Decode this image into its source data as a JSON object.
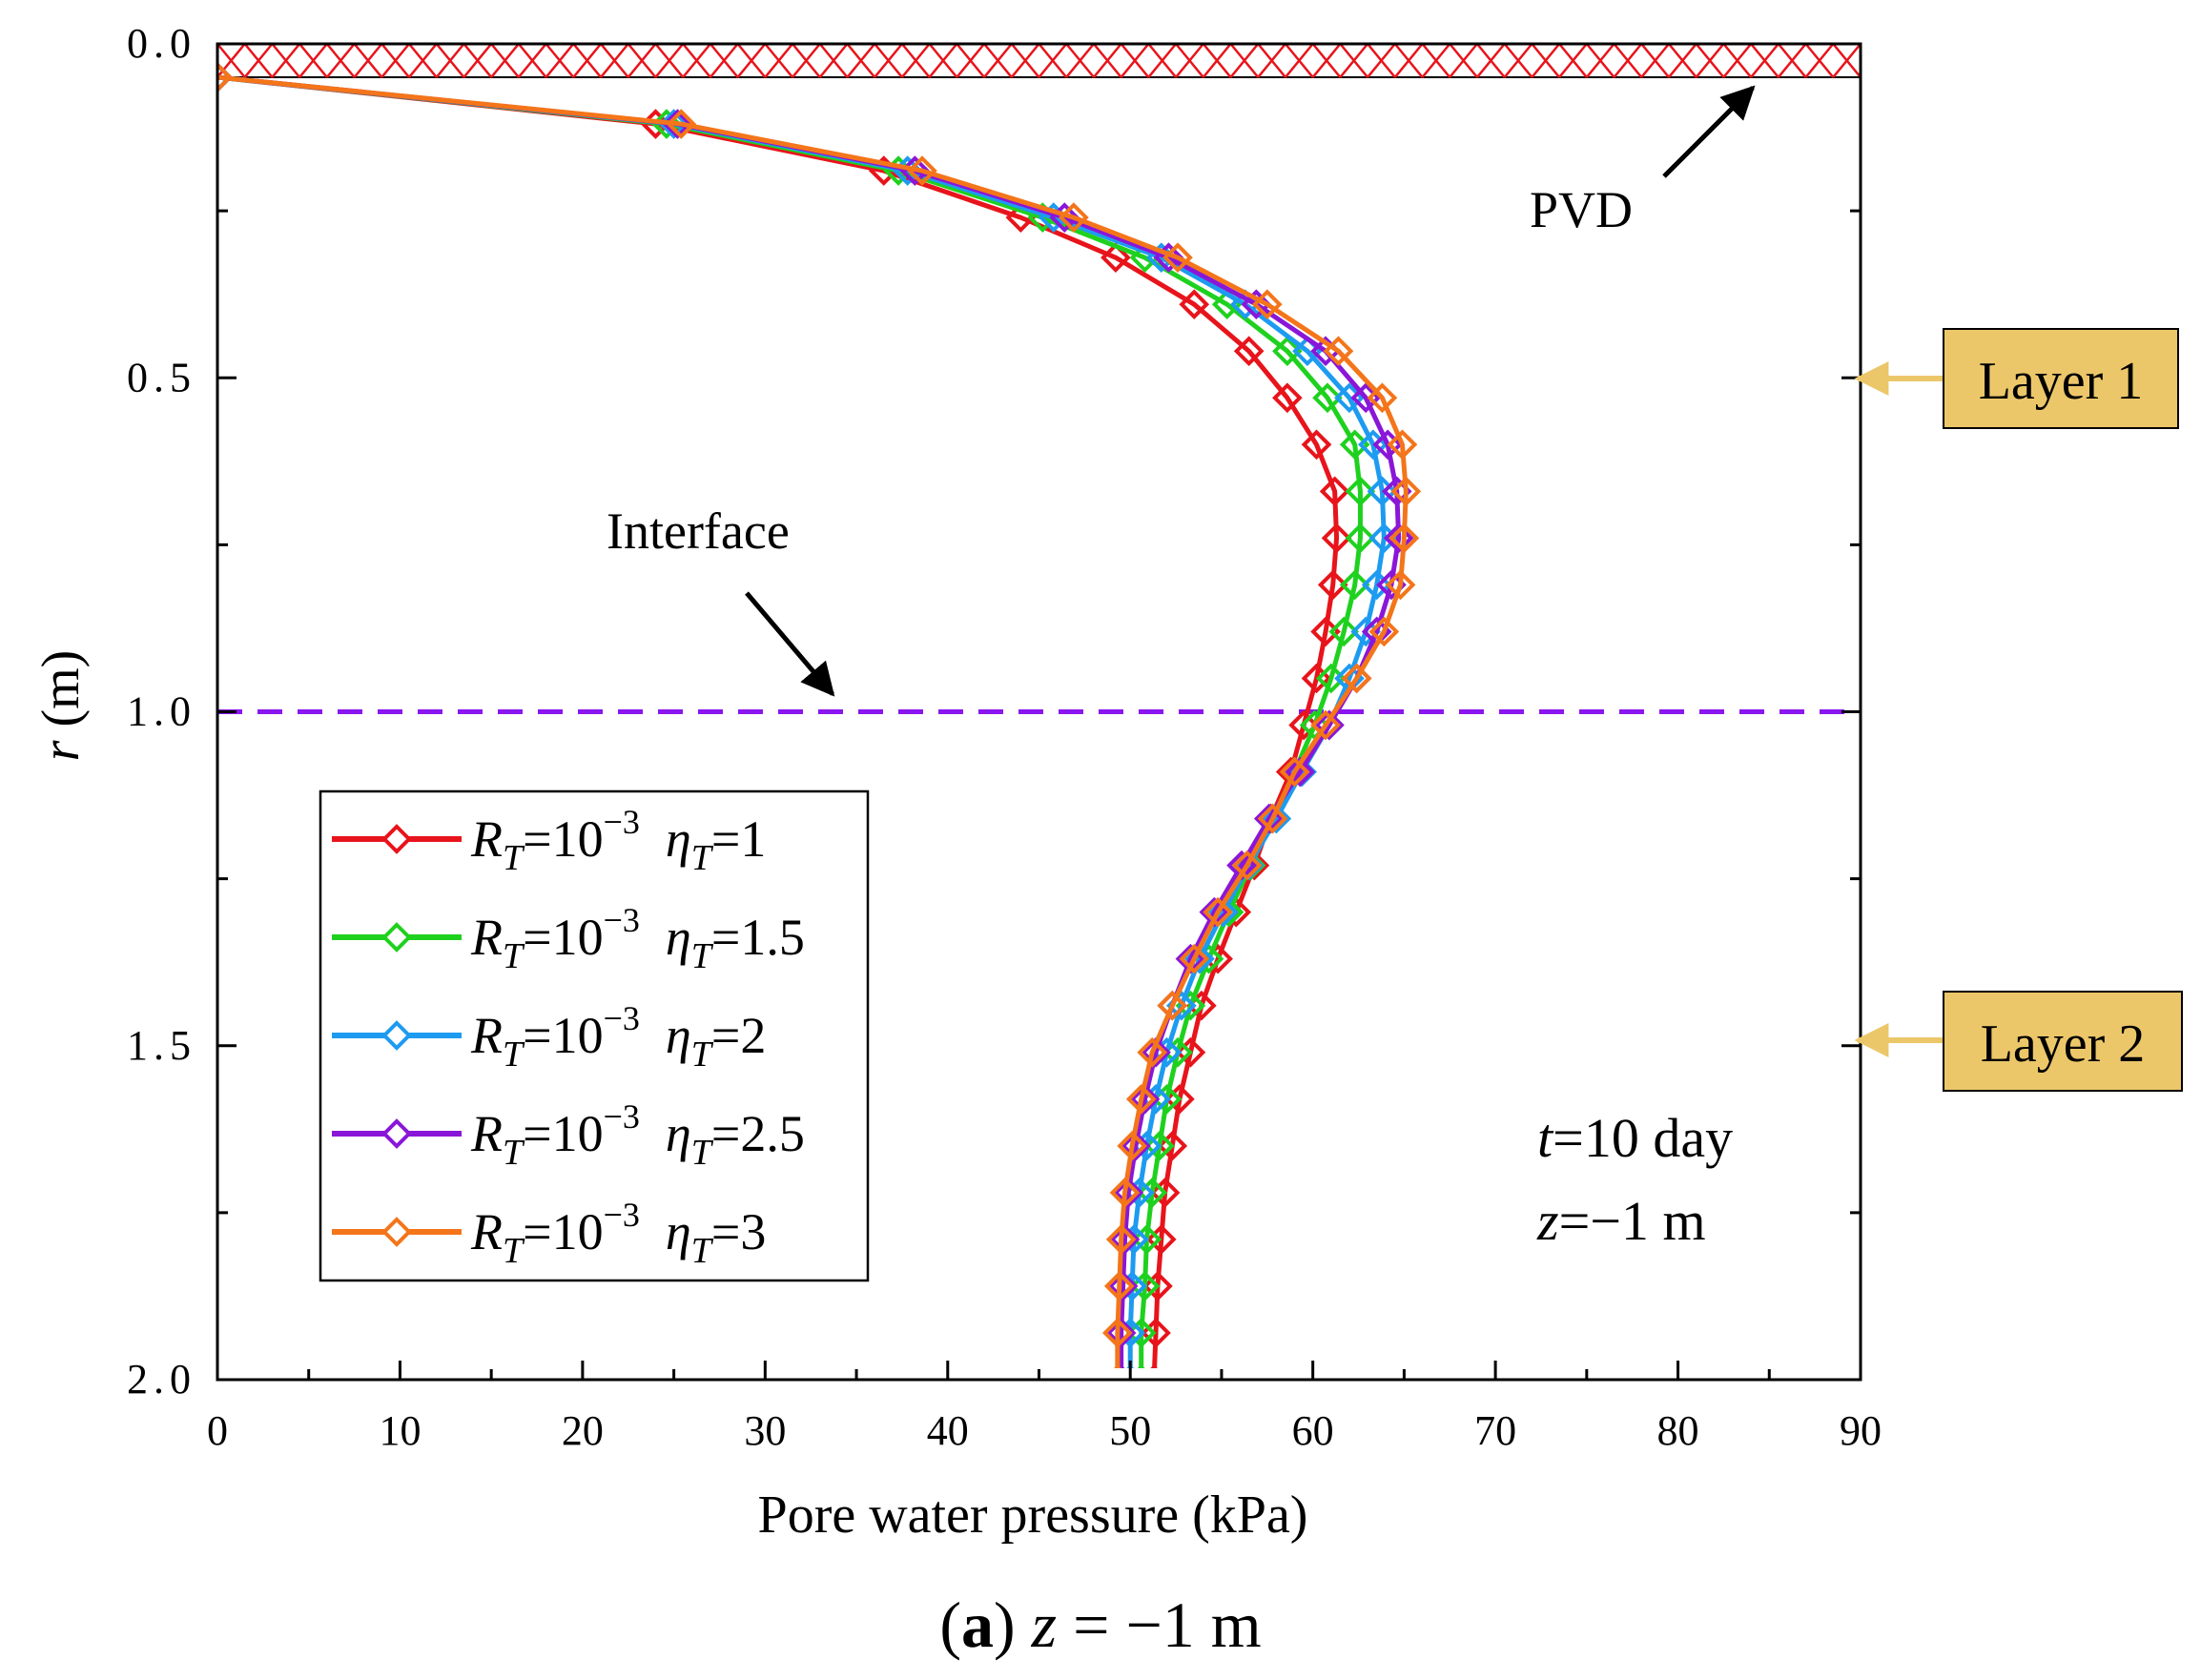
{
  "chart_data": {
    "type": "line",
    "xlabel": "Pore water pressure  (kPa)",
    "ylabel_italic": "r",
    "ylabel_unit": " (m)",
    "xlim": [
      0,
      90
    ],
    "ylim": [
      0,
      2.0
    ],
    "y_inverted": true,
    "x_major_ticks": [
      0,
      10,
      20,
      30,
      40,
      50,
      60,
      70,
      80,
      90
    ],
    "y_major_ticks": [
      0.0,
      0.5,
      1.0,
      1.5,
      2.0
    ],
    "y_tick_labels": [
      "0.0",
      "0.5",
      "1.0",
      "1.5",
      "2.0"
    ],
    "caption": {
      "bold": "a",
      "rest": " z = −1 m"
    },
    "annotations": {
      "pvd": "PVD",
      "interface": "Interface",
      "layer1": "Layer 1",
      "layer2": "Layer 2",
      "time": "t=10 day",
      "depth": "z=−1 m",
      "interface_r": 1.0,
      "pvd_band_r": [
        0.0,
        0.05
      ]
    },
    "colors": {
      "pvd_hatch": "#e8141b",
      "interface_line": "#8a16f0",
      "layer_box": "#ecc76a",
      "layer_arrow": "#ecc76a",
      "arrow": "#000000"
    },
    "r_points": [
      0.05,
      0.12,
      0.19,
      0.26,
      0.32,
      0.39,
      0.46,
      0.53,
      0.6,
      0.67,
      0.74,
      0.81,
      0.88,
      0.95,
      1.02,
      1.09,
      1.16,
      1.23,
      1.3,
      1.37,
      1.44,
      1.51,
      1.58,
      1.65,
      1.72,
      1.79,
      1.86,
      1.93,
      2.0
    ],
    "series": [
      {
        "name": "RT=10^-3 ηT=1",
        "legend": {
          "R": "R",
          "Rsub": "T",
          "eq1": "=10",
          "exp": "−3",
          "eta": "η",
          "etasub": "T",
          "eq2": "=1"
        },
        "color": "#e8141b",
        "values": [
          0,
          24.0,
          36.5,
          44.0,
          49.2,
          53.5,
          56.5,
          58.6,
          60.2,
          61.2,
          61.3,
          61.1,
          60.7,
          60.2,
          59.5,
          58.8,
          57.7,
          56.8,
          55.8,
          54.8,
          53.9,
          53.3,
          52.7,
          52.3,
          51.9,
          51.7,
          51.5,
          51.4,
          51.3
        ]
      },
      {
        "name": "RT=10^-3 ηT=1.5",
        "legend": {
          "R": "R",
          "Rsub": "T",
          "eq1": "=10",
          "exp": "−3",
          "eta": "η",
          "etasub": "T",
          "eq2": "=1.5"
        },
        "color": "#1fd11f",
        "values": [
          0,
          24.6,
          37.3,
          45.2,
          50.8,
          55.3,
          58.6,
          60.8,
          62.3,
          62.6,
          62.6,
          62.3,
          61.7,
          61.0,
          60.1,
          59.0,
          57.8,
          56.6,
          55.4,
          54.3,
          53.3,
          52.6,
          52.0,
          51.6,
          51.2,
          50.9,
          50.8,
          50.6,
          50.6
        ]
      },
      {
        "name": "RT=10^-3 ηT=2",
        "legend": {
          "R": "R",
          "Rsub": "T",
          "eq1": "=10",
          "exp": "−3",
          "eta": "η",
          "etasub": "T",
          "eq2": "=2"
        },
        "color": "#1d9bf0",
        "values": [
          0,
          25.0,
          37.8,
          45.8,
          51.7,
          56.3,
          59.7,
          62.0,
          63.3,
          63.8,
          63.9,
          63.5,
          62.9,
          62.0,
          60.9,
          59.4,
          58.0,
          56.5,
          55.1,
          53.8,
          52.8,
          52.0,
          51.4,
          50.9,
          50.5,
          50.2,
          50.1,
          50.0,
          50.0
        ]
      },
      {
        "name": "RT=10^-3 ηT=2.5",
        "legend": {
          "R": "R",
          "Rsub": "T",
          "eq1": "=10",
          "exp": "−3",
          "eta": "η",
          "etasub": "T",
          "eq2": "=2.5"
        },
        "color": "#8a16d8",
        "values": [
          0,
          25.2,
          38.2,
          46.4,
          52.1,
          56.9,
          60.7,
          62.9,
          64.1,
          64.6,
          64.7,
          64.3,
          63.5,
          62.4,
          60.9,
          59.3,
          57.6,
          56.1,
          54.6,
          53.3,
          52.3,
          51.4,
          50.8,
          50.3,
          49.9,
          49.7,
          49.6,
          49.5,
          49.5
        ]
      },
      {
        "name": "RT=10^-3 ηT=3",
        "legend": {
          "R": "R",
          "Rsub": "T",
          "eq1": "=10",
          "exp": "−3",
          "eta": "η",
          "etasub": "T",
          "eq2": "=3"
        },
        "color": "#f4751a",
        "values": [
          0,
          25.4,
          38.6,
          46.9,
          52.6,
          57.5,
          61.4,
          63.8,
          64.9,
          65.1,
          65.0,
          64.8,
          63.9,
          62.4,
          60.7,
          59.0,
          57.8,
          56.4,
          54.8,
          53.5,
          52.3,
          51.2,
          50.6,
          50.1,
          49.7,
          49.5,
          49.4,
          49.3,
          49.3
        ]
      }
    ]
  }
}
